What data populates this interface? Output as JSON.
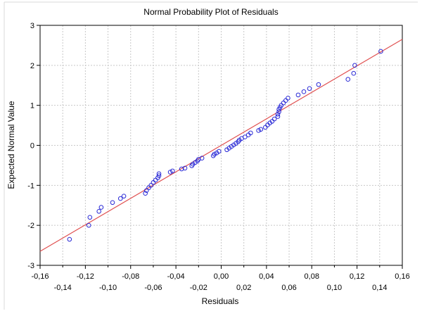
{
  "chart_data": {
    "type": "scatter",
    "title": "Normal Probability Plot of Residuals",
    "xlabel": "Residuals",
    "ylabel": "Expected Normal Value",
    "xlim": [
      -0.16,
      0.16
    ],
    "ylim": [
      -3,
      3
    ],
    "x_ticks_upper": [
      "-0,16",
      "-0,12",
      "-0,08",
      "-0,04",
      "0,00",
      "0,04",
      "0,08",
      "0,12",
      "0,16"
    ],
    "x_ticks_lower": [
      "-0,14",
      "-0,10",
      "-0,06",
      "-0,02",
      "0,02",
      "0,06",
      "0,10",
      "0,14"
    ],
    "y_ticks": [
      "-3",
      "-2",
      "-1",
      "0",
      "1",
      "2",
      "3"
    ],
    "grid": true,
    "colors": {
      "points": "#2b2bd6",
      "fit_line": "#e05050"
    },
    "fit_line": {
      "x": [
        -0.16,
        0.16
      ],
      "y": [
        -2.65,
        2.65
      ]
    },
    "points": [
      [
        -0.134,
        -2.35
      ],
      [
        -0.117,
        -2.0
      ],
      [
        -0.116,
        -1.8
      ],
      [
        -0.108,
        -1.65
      ],
      [
        -0.106,
        -1.55
      ],
      [
        -0.096,
        -1.43
      ],
      [
        -0.089,
        -1.33
      ],
      [
        -0.086,
        -1.27
      ],
      [
        -0.067,
        -1.2
      ],
      [
        -0.066,
        -1.13
      ],
      [
        -0.064,
        -1.06
      ],
      [
        -0.062,
        -1.0
      ],
      [
        -0.06,
        -0.93
      ],
      [
        -0.058,
        -0.87
      ],
      [
        -0.056,
        -0.81
      ],
      [
        -0.055,
        -0.76
      ],
      [
        -0.055,
        -0.71
      ],
      [
        -0.045,
        -0.67
      ],
      [
        -0.043,
        -0.64
      ],
      [
        -0.035,
        -0.59
      ],
      [
        -0.032,
        -0.57
      ],
      [
        -0.026,
        -0.51
      ],
      [
        -0.025,
        -0.47
      ],
      [
        -0.023,
        -0.43
      ],
      [
        -0.021,
        -0.39
      ],
      [
        -0.02,
        -0.35
      ],
      [
        -0.017,
        -0.32
      ],
      [
        -0.007,
        -0.26
      ],
      [
        -0.006,
        -0.22
      ],
      [
        -0.004,
        -0.19
      ],
      [
        -0.002,
        -0.15
      ],
      [
        0.005,
        -0.11
      ],
      [
        0.007,
        -0.07
      ],
      [
        0.009,
        -0.03
      ],
      [
        0.011,
        0.01
      ],
      [
        0.013,
        0.05
      ],
      [
        0.015,
        0.09
      ],
      [
        0.016,
        0.13
      ],
      [
        0.018,
        0.17
      ],
      [
        0.021,
        0.21
      ],
      [
        0.024,
        0.26
      ],
      [
        0.026,
        0.31
      ],
      [
        0.033,
        0.37
      ],
      [
        0.035,
        0.4
      ],
      [
        0.039,
        0.45
      ],
      [
        0.041,
        0.51
      ],
      [
        0.043,
        0.56
      ],
      [
        0.045,
        0.6
      ],
      [
        0.047,
        0.66
      ],
      [
        0.05,
        0.72
      ],
      [
        0.05,
        0.78
      ],
      [
        0.051,
        0.84
      ],
      [
        0.051,
        0.9
      ],
      [
        0.052,
        0.95
      ],
      [
        0.053,
        1.0
      ],
      [
        0.055,
        1.06
      ],
      [
        0.057,
        1.12
      ],
      [
        0.059,
        1.18
      ],
      [
        0.068,
        1.26
      ],
      [
        0.073,
        1.34
      ],
      [
        0.078,
        1.42
      ],
      [
        0.086,
        1.52
      ],
      [
        0.112,
        1.65
      ],
      [
        0.117,
        1.8
      ],
      [
        0.118,
        2.0
      ],
      [
        0.141,
        2.35
      ]
    ]
  }
}
